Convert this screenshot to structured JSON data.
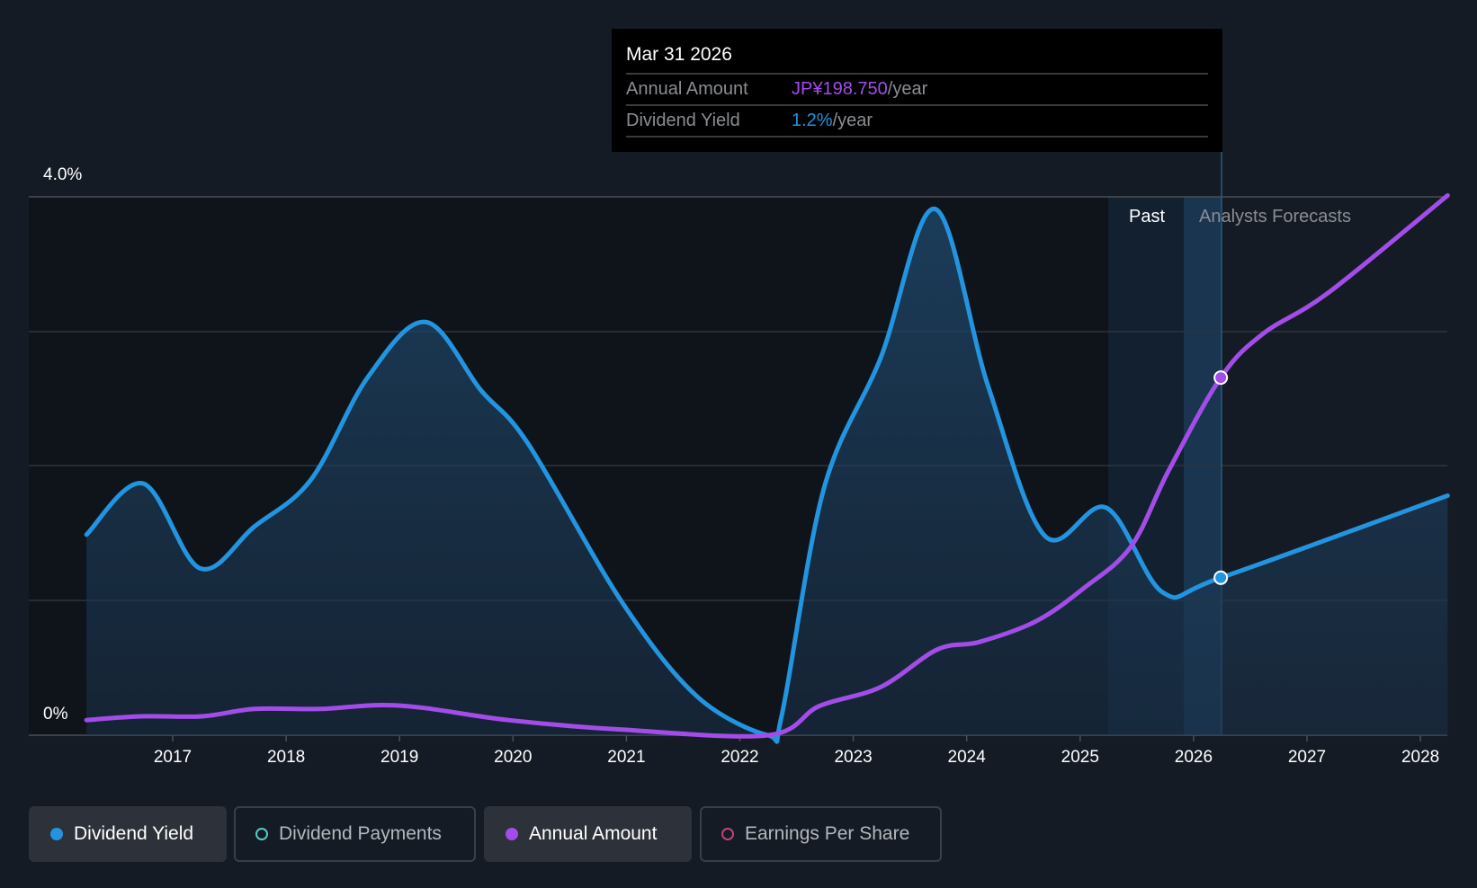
{
  "tooltip": {
    "date": "Mar 31 2026",
    "rows": [
      {
        "label": "Annual Amount",
        "value": "JP¥198.750",
        "suffix": "/year"
      },
      {
        "label": "Dividend Yield",
        "value": "1.2%",
        "suffix": "/year"
      }
    ]
  },
  "regions": {
    "past": "Past",
    "forecast": "Analysts Forecasts"
  },
  "legend": [
    {
      "label": "Dividend Yield",
      "color": "#2394df",
      "active": true
    },
    {
      "label": "Dividend Payments",
      "color": "#4ecdc4",
      "active": false
    },
    {
      "label": "Annual Amount",
      "color": "#a24de8",
      "active": true
    },
    {
      "label": "Earnings Per Share",
      "color": "#c2417c",
      "active": false
    }
  ],
  "chart_data": {
    "type": "line",
    "title": "",
    "ylabel": "Dividend Yield",
    "ylim": [
      0,
      4.0
    ],
    "y_tick_labels": [
      "0%",
      "4.0%"
    ],
    "x_tick_labels": [
      "2017",
      "2018",
      "2019",
      "2020",
      "2021",
      "2022",
      "2023",
      "2024",
      "2025",
      "2026",
      "2027",
      "2028"
    ],
    "xlim": [
      2016.0,
      2028.25
    ],
    "past_region": [
      2025.25,
      2026.25
    ],
    "grid": true,
    "series": [
      {
        "name": "Dividend Yield",
        "unit": "%",
        "color": "#2394df",
        "area": true,
        "x": [
          2016.24,
          2016.74,
          2017.24,
          2017.72,
          2018.22,
          2018.72,
          2019.23,
          2019.72,
          2020.13,
          2020.96,
          2021.62,
          2022.25,
          2022.37,
          2022.74,
          2023.24,
          2023.72,
          2024.19,
          2024.69,
          2025.23,
          2025.73,
          2026.24,
          2028.24
        ],
        "y": [
          1.49,
          1.87,
          1.24,
          1.55,
          1.9,
          2.66,
          3.07,
          2.56,
          2.17,
          0.99,
          0.29,
          0.0,
          0.15,
          1.83,
          2.8,
          3.91,
          2.59,
          1.48,
          1.69,
          1.06,
          1.17,
          1.78
        ]
      },
      {
        "name": "Annual Amount",
        "unit": "JP¥",
        "color": "#a24de8",
        "area": false,
        "ylim": [
          0,
          299.2
        ],
        "x": [
          2016.24,
          2016.72,
          2017.26,
          2017.72,
          2018.3,
          2018.8,
          2019.21,
          2019.96,
          2020.96,
          2022.25,
          2022.7,
          2023.24,
          2023.74,
          2024.11,
          2024.61,
          2025.03,
          2025.45,
          2025.78,
          2026.24,
          2026.61,
          2027.19,
          2028.24
        ],
        "y": [
          8.4,
          10.5,
          10.5,
          14.6,
          14.6,
          16.7,
          15.2,
          8.4,
          3.1,
          0,
          16.2,
          26.7,
          47.6,
          51.8,
          63.3,
          81.6,
          105,
          147,
          198.75,
          223,
          246,
          300
        ]
      }
    ],
    "highlight_x": 2026.24
  }
}
